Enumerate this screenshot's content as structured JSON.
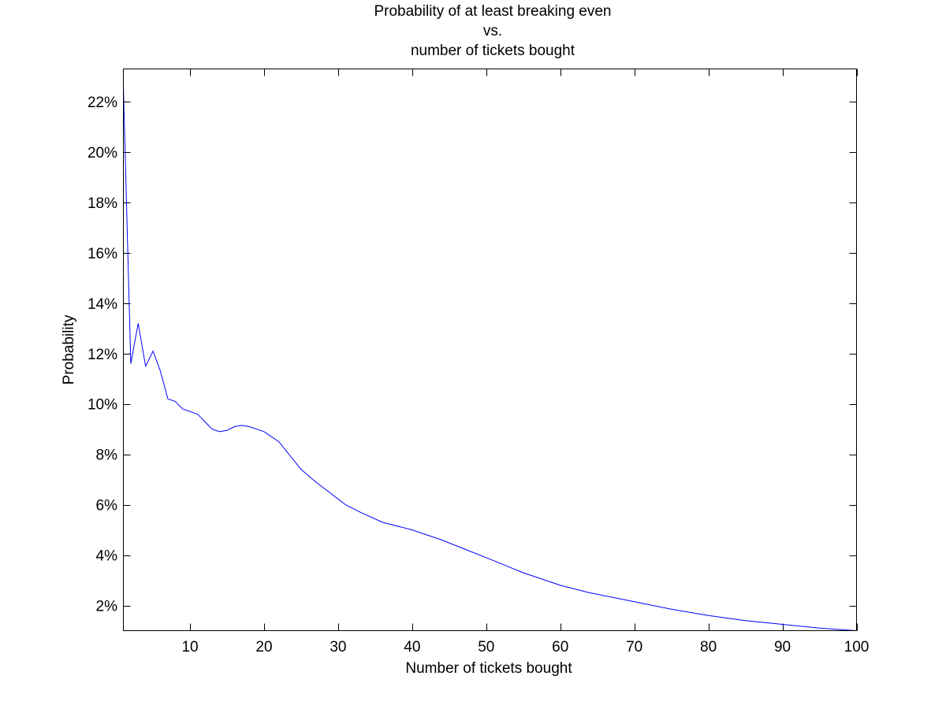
{
  "chart_data": {
    "type": "line",
    "title": [
      "Probability of at least breaking even",
      "vs.",
      "number of tickets bought"
    ],
    "xlabel": "Number of tickets bought",
    "ylabel": "Probability",
    "xlim": [
      1,
      100
    ],
    "ylim": [
      1.0,
      23.3
    ],
    "xticks": [
      10,
      20,
      30,
      40,
      50,
      60,
      70,
      80,
      90,
      100
    ],
    "xtick_labels": [
      "10",
      "20",
      "30",
      "40",
      "50",
      "60",
      "70",
      "80",
      "90",
      "100"
    ],
    "yticks": [
      2,
      4,
      6,
      8,
      10,
      12,
      14,
      16,
      18,
      20,
      22
    ],
    "ytick_labels": [
      "2%",
      "4%",
      "6%",
      "8%",
      "10%",
      "12%",
      "14%",
      "16%",
      "18%",
      "20%",
      "22%"
    ],
    "grid": false,
    "line_color": "#0000ff",
    "series": [
      {
        "x": [
          1,
          2,
          3,
          4,
          5,
          6,
          7,
          8,
          9,
          10,
          11,
          12,
          13,
          14,
          15,
          16,
          17,
          18,
          19,
          20,
          22,
          25,
          27,
          31,
          33,
          36,
          40,
          44,
          47,
          50,
          55,
          60,
          64,
          70,
          75,
          80,
          85,
          90,
          95,
          100
        ],
        "values": [
          22.6,
          11.6,
          13.2,
          11.5,
          12.1,
          11.3,
          10.2,
          10.1,
          9.8,
          9.7,
          9.6,
          9.3,
          9.0,
          8.9,
          8.95,
          9.1,
          9.15,
          9.1,
          9.0,
          8.9,
          8.5,
          7.4,
          6.9,
          6.0,
          5.7,
          5.3,
          5.0,
          4.6,
          4.25,
          3.9,
          3.3,
          2.8,
          2.5,
          2.15,
          1.85,
          1.6,
          1.4,
          1.25,
          1.1,
          1.0
        ]
      }
    ]
  }
}
